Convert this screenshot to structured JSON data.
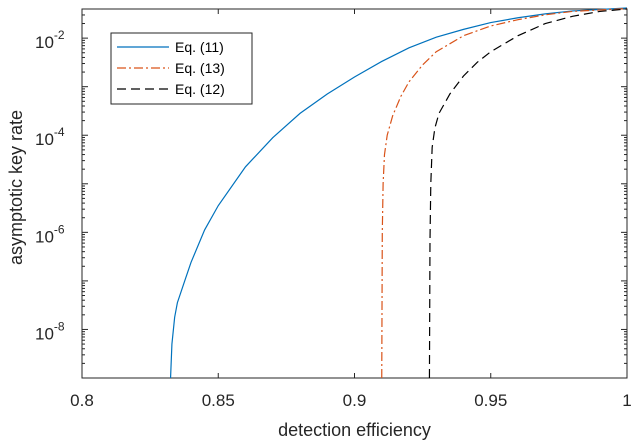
{
  "chart_data": {
    "type": "line",
    "xlabel": "detection efficiency",
    "ylabel": "asymptotic key rate",
    "xlim": [
      0.8,
      1.0
    ],
    "ylim_log10": [
      -9.0,
      -1.4
    ],
    "y_scale": "log",
    "grid": false,
    "legend_position": "top-left",
    "x_ticks": [
      0.8,
      0.85,
      0.9,
      0.95,
      1.0
    ],
    "x_tick_labels": [
      "0.8",
      "0.85",
      "0.9",
      "0.95",
      "1"
    ],
    "y_ticks_log10": [
      -8,
      -6,
      -4,
      -2
    ],
    "y_tick_base": "10",
    "y_tick_exponents": [
      "-8",
      "-6",
      "-4",
      "-2"
    ],
    "series": [
      {
        "name": "Eq. (11)",
        "color": "#0072BD",
        "style": "solid",
        "points": [
          [
            0.8325,
            -9.0
          ],
          [
            0.833,
            -8.3
          ],
          [
            0.834,
            -7.75
          ],
          [
            0.835,
            -7.45
          ],
          [
            0.8365,
            -7.2
          ],
          [
            0.838,
            -6.95
          ],
          [
            0.84,
            -6.62
          ],
          [
            0.845,
            -5.95
          ],
          [
            0.85,
            -5.45
          ],
          [
            0.86,
            -4.65
          ],
          [
            0.87,
            -4.05
          ],
          [
            0.88,
            -3.55
          ],
          [
            0.89,
            -3.15
          ],
          [
            0.9,
            -2.8
          ],
          [
            0.91,
            -2.48
          ],
          [
            0.92,
            -2.2
          ],
          [
            0.93,
            -1.98
          ],
          [
            0.94,
            -1.82
          ],
          [
            0.95,
            -1.68
          ],
          [
            0.96,
            -1.58
          ],
          [
            0.97,
            -1.5
          ],
          [
            0.98,
            -1.44
          ],
          [
            0.99,
            -1.41
          ],
          [
            1.0,
            -1.38
          ]
        ]
      },
      {
        "name": "Eq. (13)",
        "color": "#D95319",
        "style": "dashdot",
        "points": [
          [
            0.91,
            -9.0
          ],
          [
            0.9102,
            -6.0
          ],
          [
            0.9105,
            -5.0
          ],
          [
            0.911,
            -4.4
          ],
          [
            0.912,
            -4.0
          ],
          [
            0.914,
            -3.6
          ],
          [
            0.917,
            -3.2
          ],
          [
            0.92,
            -2.9
          ],
          [
            0.925,
            -2.55
          ],
          [
            0.93,
            -2.28
          ],
          [
            0.94,
            -1.95
          ],
          [
            0.95,
            -1.75
          ],
          [
            0.96,
            -1.62
          ],
          [
            0.97,
            -1.52
          ],
          [
            0.98,
            -1.45
          ],
          [
            0.99,
            -1.42
          ],
          [
            1.0,
            -1.39
          ]
        ]
      },
      {
        "name": "Eq. (12)",
        "color": "#000000",
        "style": "dashed",
        "points": [
          [
            0.9275,
            -9.0
          ],
          [
            0.9277,
            -6.2
          ],
          [
            0.928,
            -5.0
          ],
          [
            0.9285,
            -4.25
          ],
          [
            0.9295,
            -3.85
          ],
          [
            0.931,
            -3.55
          ],
          [
            0.935,
            -3.15
          ],
          [
            0.94,
            -2.78
          ],
          [
            0.945,
            -2.5
          ],
          [
            0.95,
            -2.28
          ],
          [
            0.96,
            -1.95
          ],
          [
            0.97,
            -1.7
          ],
          [
            0.98,
            -1.55
          ],
          [
            0.99,
            -1.45
          ],
          [
            1.0,
            -1.4
          ]
        ]
      }
    ]
  }
}
